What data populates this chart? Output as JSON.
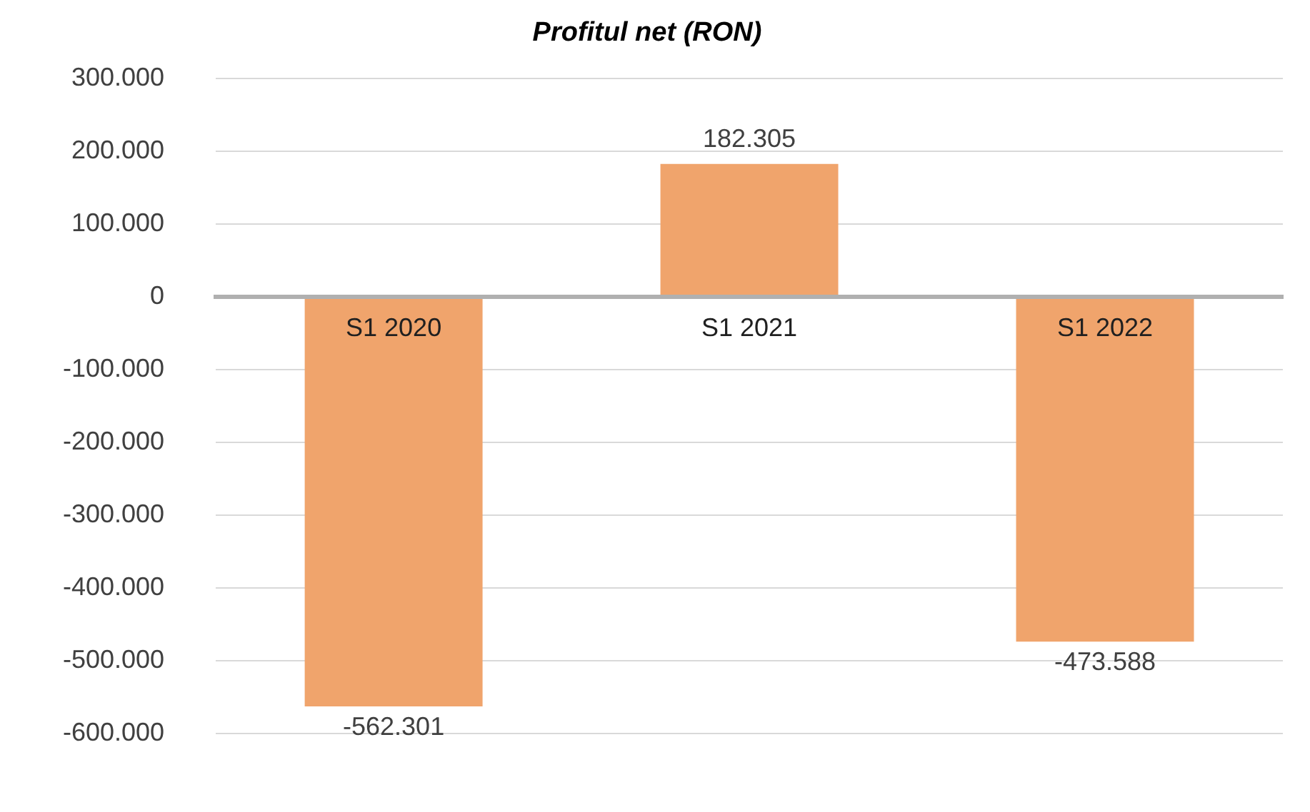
{
  "chart_data": {
    "type": "bar",
    "title": "Profitul net (RON)",
    "categories": [
      "S1 2020",
      "S1 2021",
      "S1 2022"
    ],
    "values": [
      -562301,
      182305,
      -473588
    ],
    "value_labels": [
      "-562.301",
      "182.305",
      "-473.588"
    ],
    "color": "#f0a46c",
    "ylim": [
      -600000,
      300000
    ],
    "yticks": [
      {
        "value": 300000,
        "label": "300.000"
      },
      {
        "value": 200000,
        "label": "200.000"
      },
      {
        "value": 100000,
        "label": "100.000"
      },
      0,
      {
        "value": -100000,
        "label": "-100.000"
      },
      {
        "value": -200000,
        "label": "-200.000"
      },
      {
        "value": -300000,
        "label": "-300.000"
      },
      {
        "value": -400000,
        "label": "-400.000"
      },
      {
        "value": -500000,
        "label": "-500.000"
      },
      {
        "value": -600000,
        "label": "-600.000"
      }
    ],
    "grid": "y",
    "legend": false
  }
}
